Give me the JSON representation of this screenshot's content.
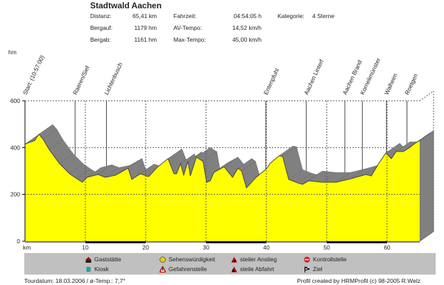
{
  "header": {
    "title": "Stadtwald Aachen",
    "stats": [
      {
        "label": "Distanz:",
        "value": "65,41 km"
      },
      {
        "label": "Bergauf:",
        "value": "1179 hm"
      },
      {
        "label": "Bergab:",
        "value": "1161 hm"
      },
      {
        "label": "Fahrzeit:",
        "value": "04:54:05 h"
      },
      {
        "label": "AV-Tempo:",
        "value": "14,52 km/h"
      },
      {
        "label": "Max-Tempo:",
        "value": "45,00 km/h"
      },
      {
        "label": "Kategorie:",
        "value": "4 Sterne"
      }
    ]
  },
  "legend": [
    {
      "label": "Gaststätte",
      "icon": "house-icon",
      "color": "#c00000"
    },
    {
      "label": "Kiosk",
      "icon": "kiosk-icon",
      "color": "#20a0a0"
    },
    {
      "label": "Sehenswürdigkeit",
      "icon": "sight-icon",
      "color": "#e0d000"
    },
    {
      "label": "Gefahrenstelle",
      "icon": "danger-icon",
      "color": "#c00000"
    },
    {
      "label": "steiler Anstieg",
      "icon": "steep-up-icon",
      "color": "#c00000"
    },
    {
      "label": "steile Abfahrt",
      "icon": "steep-down-icon",
      "color": "#c00000"
    },
    {
      "label": "Kontrollstelle",
      "icon": "stop-icon",
      "color": "#d02020"
    },
    {
      "label": "Ziel",
      "icon": "finish-flag-icon",
      "color": "#000000"
    }
  ],
  "footer": {
    "left": "Tourdatum: 18.03.2006  /  ø-Temp.: 7,7°",
    "right": "Profil created by HRMProfil (c) 98-2005 R.Welz"
  },
  "chart_data": {
    "type": "area",
    "ylabel": "hm",
    "xlabel": "km",
    "xlim": [
      0,
      65.41
    ],
    "ylim": [
      0,
      600
    ],
    "xticks": [
      10,
      20,
      30,
      40,
      50,
      60
    ],
    "yticks": [
      0,
      200,
      400,
      600
    ],
    "colors": {
      "fill": "#ffff00",
      "side": "#808080"
    },
    "waypoints": [
      {
        "name": "Start: (10:57:00)",
        "km": 0
      },
      {
        "name": "Raeren/Sief",
        "km": 8.3
      },
      {
        "name": "Lichtenbusch",
        "km": 13.5
      },
      {
        "name": "Entenpfuhl",
        "km": 39.9
      },
      {
        "name": "Aachen Linterf",
        "km": 46.6
      },
      {
        "name": "Aachen Brand",
        "km": 53.0
      },
      {
        "name": "Kornelimünster",
        "km": 55.9
      },
      {
        "name": "Walheim",
        "km": 59.9
      },
      {
        "name": "Roetgen",
        "km": 63.3
      }
    ],
    "profile": [
      [
        0,
        415
      ],
      [
        1.6,
        430
      ],
      [
        2.3,
        457
      ],
      [
        3.0,
        436
      ],
      [
        4.0,
        392
      ],
      [
        5.7,
        332
      ],
      [
        7.4,
        288
      ],
      [
        8.6,
        267
      ],
      [
        9.5,
        252
      ],
      [
        10.3,
        273
      ],
      [
        12.1,
        285
      ],
      [
        13.3,
        273
      ],
      [
        15.0,
        282
      ],
      [
        17.1,
        312
      ],
      [
        17.7,
        264
      ],
      [
        19.1,
        288
      ],
      [
        20.5,
        276
      ],
      [
        22.0,
        318
      ],
      [
        23.7,
        353
      ],
      [
        24.7,
        288
      ],
      [
        25.1,
        288
      ],
      [
        25.8,
        332
      ],
      [
        26.3,
        282
      ],
      [
        27.0,
        341
      ],
      [
        27.4,
        279
      ],
      [
        28.4,
        359
      ],
      [
        29.5,
        341
      ],
      [
        30.1,
        252
      ],
      [
        30.7,
        258
      ],
      [
        31.3,
        294
      ],
      [
        33.0,
        318
      ],
      [
        34.4,
        273
      ],
      [
        35.3,
        312
      ],
      [
        35.9,
        300
      ],
      [
        36.7,
        228
      ],
      [
        38.3,
        273
      ],
      [
        40.0,
        309
      ],
      [
        40.6,
        332
      ],
      [
        42.1,
        365
      ],
      [
        42.7,
        362
      ],
      [
        43.7,
        264
      ],
      [
        45.2,
        249
      ],
      [
        46.0,
        243
      ],
      [
        47.0,
        258
      ],
      [
        49.3,
        252
      ],
      [
        51.6,
        252
      ],
      [
        54.0,
        267
      ],
      [
        56.5,
        285
      ],
      [
        57.4,
        279
      ],
      [
        58.6,
        332
      ],
      [
        59.8,
        377
      ],
      [
        60.7,
        353
      ],
      [
        61.5,
        383
      ],
      [
        62.7,
        383
      ],
      [
        63.8,
        401
      ],
      [
        64.6,
        418
      ],
      [
        65.41,
        430
      ]
    ]
  }
}
